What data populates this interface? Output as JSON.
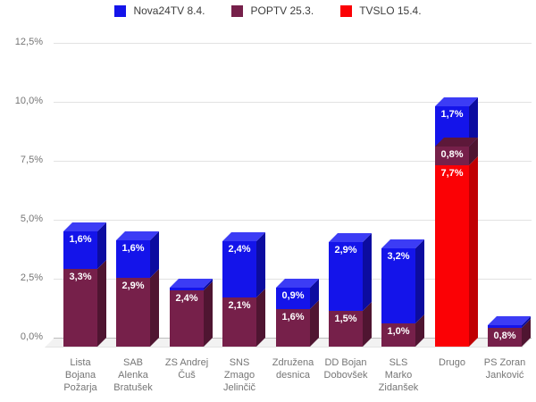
{
  "legend": [
    {
      "label": "Nova24TV 8.4.",
      "color": "#1414ea"
    },
    {
      "label": "POPTV 25.3.",
      "color": "#76204a"
    },
    {
      "label": "TVSLO 15.4.",
      "color": "#fb0105"
    }
  ],
  "y_axis": {
    "ticks": [
      {
        "value": 0,
        "label": "0,0%"
      },
      {
        "value": 2.5,
        "label": "2,5%"
      },
      {
        "value": 5,
        "label": "5,0%"
      },
      {
        "value": 7.5,
        "label": "7,5%"
      },
      {
        "value": 10,
        "label": "10,0%"
      },
      {
        "value": 12.5,
        "label": "12,5%"
      }
    ]
  },
  "chart_data": {
    "type": "bar",
    "stacked": true,
    "effect": "3d",
    "title": "",
    "xlabel": "",
    "ylabel": "",
    "ylim": [
      0,
      12.5
    ],
    "grid": true,
    "legend_position": "top",
    "number_format": "decimal-comma-percent",
    "categories": [
      "Lista Bojana Požarja",
      "SAB Alenka Bratušek",
      "ZS Andrej Čuš",
      "SNS Zmago Jelinčič",
      "Združena desnica",
      "DD Bojan Dobovšek",
      "SLS Marko Zidanšek",
      "Drugo",
      "PS Zoran Janković"
    ],
    "category_lines": [
      [
        "Lista",
        "Bojana",
        "Požarja"
      ],
      [
        "SAB",
        "Alenka",
        "Bratušek"
      ],
      [
        "ZS Andrej",
        "Čuš"
      ],
      [
        "SNS",
        "Zmago",
        "Jelinčič"
      ],
      [
        "Združena",
        "desnica"
      ],
      [
        "DD Bojan",
        "Dobovšek"
      ],
      [
        "SLS",
        "Marko",
        "Zidanšek"
      ],
      [
        "Drugo"
      ],
      [
        "PS Zoran",
        "Janković"
      ]
    ],
    "series": [
      {
        "name": "Nova24TV 8.4.",
        "colors": {
          "front": "#1414ea",
          "side": "#0c0ca0",
          "top": "#3c3cf5"
        },
        "values": [
          1.6,
          1.6,
          null,
          2.4,
          0.9,
          2.9,
          3.2,
          1.7,
          null
        ]
      },
      {
        "name": "POPTV 25.3.",
        "colors": {
          "front": "#76204a",
          "side": "#4f1531",
          "top": "#5d1839"
        },
        "values": [
          3.3,
          2.9,
          2.4,
          2.1,
          1.6,
          1.5,
          1.0,
          0.8,
          0.8
        ]
      },
      {
        "name": "TVSLO 15.4.",
        "colors": {
          "front": "#fb0105",
          "side": "#c00003",
          "top": "#ff4a4a"
        },
        "values": [
          null,
          null,
          null,
          null,
          null,
          null,
          null,
          7.7,
          null
        ]
      }
    ],
    "bars": [
      {
        "segments": [
          {
            "series": 1,
            "value": 3.3,
            "label": "3,3%"
          },
          {
            "series": 0,
            "value": 1.6,
            "label": "1,6%"
          }
        ]
      },
      {
        "segments": [
          {
            "series": 1,
            "value": 2.9,
            "label": "2,9%"
          },
          {
            "series": 0,
            "value": 1.6,
            "label": "1,6%"
          }
        ]
      },
      {
        "segments": [
          {
            "series": 1,
            "value": 2.4,
            "label": "2,4%"
          },
          {
            "series": 0,
            "value": null,
            "label": ""
          }
        ]
      },
      {
        "segments": [
          {
            "series": 1,
            "value": 2.1,
            "label": "2,1%"
          },
          {
            "series": 0,
            "value": 2.4,
            "label": "2,4%"
          }
        ]
      },
      {
        "segments": [
          {
            "series": 1,
            "value": 1.6,
            "label": "1,6%"
          },
          {
            "series": 0,
            "value": 0.9,
            "label": "0,9%"
          }
        ]
      },
      {
        "segments": [
          {
            "series": 1,
            "value": 1.5,
            "label": "1,5%"
          },
          {
            "series": 0,
            "value": 2.9,
            "label": "2,9%"
          }
        ]
      },
      {
        "segments": [
          {
            "series": 1,
            "value": 1.0,
            "label": "1,0%"
          },
          {
            "series": 0,
            "value": 3.2,
            "label": "3,2%"
          }
        ]
      },
      {
        "segments": [
          {
            "series": 2,
            "value": 7.7,
            "label": "7,7%"
          },
          {
            "series": 1,
            "value": 0.8,
            "label": "0,8%",
            "show_top": true
          },
          {
            "series": 0,
            "value": 1.7,
            "label": "1,7%"
          }
        ]
      },
      {
        "segments": [
          {
            "series": 1,
            "value": 0.8,
            "label": "0,8%"
          },
          {
            "series": 0,
            "value": null,
            "label": ""
          }
        ]
      }
    ]
  }
}
